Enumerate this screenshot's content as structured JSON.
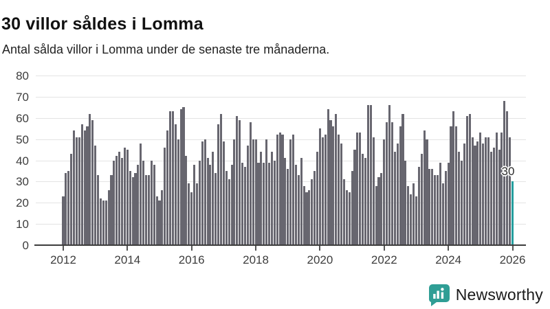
{
  "header": {
    "title": "30 villor såldes i Lomma",
    "subtitle": "Antal sålda villor i Lomma under de senaste tre månaderna."
  },
  "branding": {
    "name": "Newsworthy",
    "logo_icon": "speech-bubble-bar-chart",
    "color": "#2f9e95"
  },
  "chart_data": {
    "type": "bar",
    "title": "30 villor såldes i Lomma",
    "subtitle": "Antal sålda villor i Lomma under de senaste tre månaderna.",
    "xlabel": "",
    "ylabel": "",
    "ylim": [
      0,
      80
    ],
    "y_ticks": [
      0,
      10,
      20,
      30,
      40,
      50,
      60,
      70,
      80
    ],
    "x_tick_labels": [
      "2012",
      "2014",
      "2016",
      "2018",
      "2020",
      "2022",
      "2024",
      "2026"
    ],
    "grid": true,
    "legend": false,
    "bar_color": "#67666f",
    "highlight_color": "#239e9e",
    "period": "monthly",
    "start_month": "2012-01",
    "end_month": "2026-01",
    "values": [
      23,
      34,
      35,
      43,
      54,
      51,
      51,
      57,
      54,
      56,
      62,
      59,
      47,
      33,
      22,
      21,
      21,
      26,
      33,
      40,
      42,
      44,
      41,
      46,
      45,
      35,
      32,
      34,
      38,
      48,
      40,
      33,
      33,
      40,
      38,
      23,
      21,
      26,
      46,
      54,
      63,
      63,
      57,
      50,
      64,
      65,
      42,
      29,
      25,
      38,
      29,
      40,
      49,
      50,
      41,
      38,
      44,
      34,
      57,
      62,
      49,
      35,
      31,
      38,
      50,
      61,
      59,
      39,
      37,
      47,
      58,
      50,
      50,
      39,
      44,
      39,
      50,
      39,
      44,
      40,
      52,
      53,
      52,
      41,
      36,
      50,
      52,
      38,
      33,
      41,
      28,
      25,
      26,
      31,
      35,
      44,
      55,
      51,
      52,
      64,
      59,
      56,
      62,
      52,
      48,
      31,
      26,
      25,
      35,
      45,
      53,
      53,
      43,
      41,
      66,
      66,
      51,
      28,
      32,
      34,
      50,
      58,
      66,
      58,
      44,
      48,
      56,
      62,
      40,
      28,
      24,
      29,
      23,
      37,
      43,
      54,
      50,
      36,
      36,
      33,
      33,
      39,
      29,
      35,
      39,
      56,
      63,
      56,
      44,
      40,
      48,
      61,
      62,
      51,
      47,
      49,
      53,
      48,
      51,
      51,
      44,
      46,
      53,
      45,
      53,
      68,
      63,
      51,
      30
    ],
    "highlight": {
      "index": 168,
      "value": 30,
      "label": "30"
    }
  }
}
